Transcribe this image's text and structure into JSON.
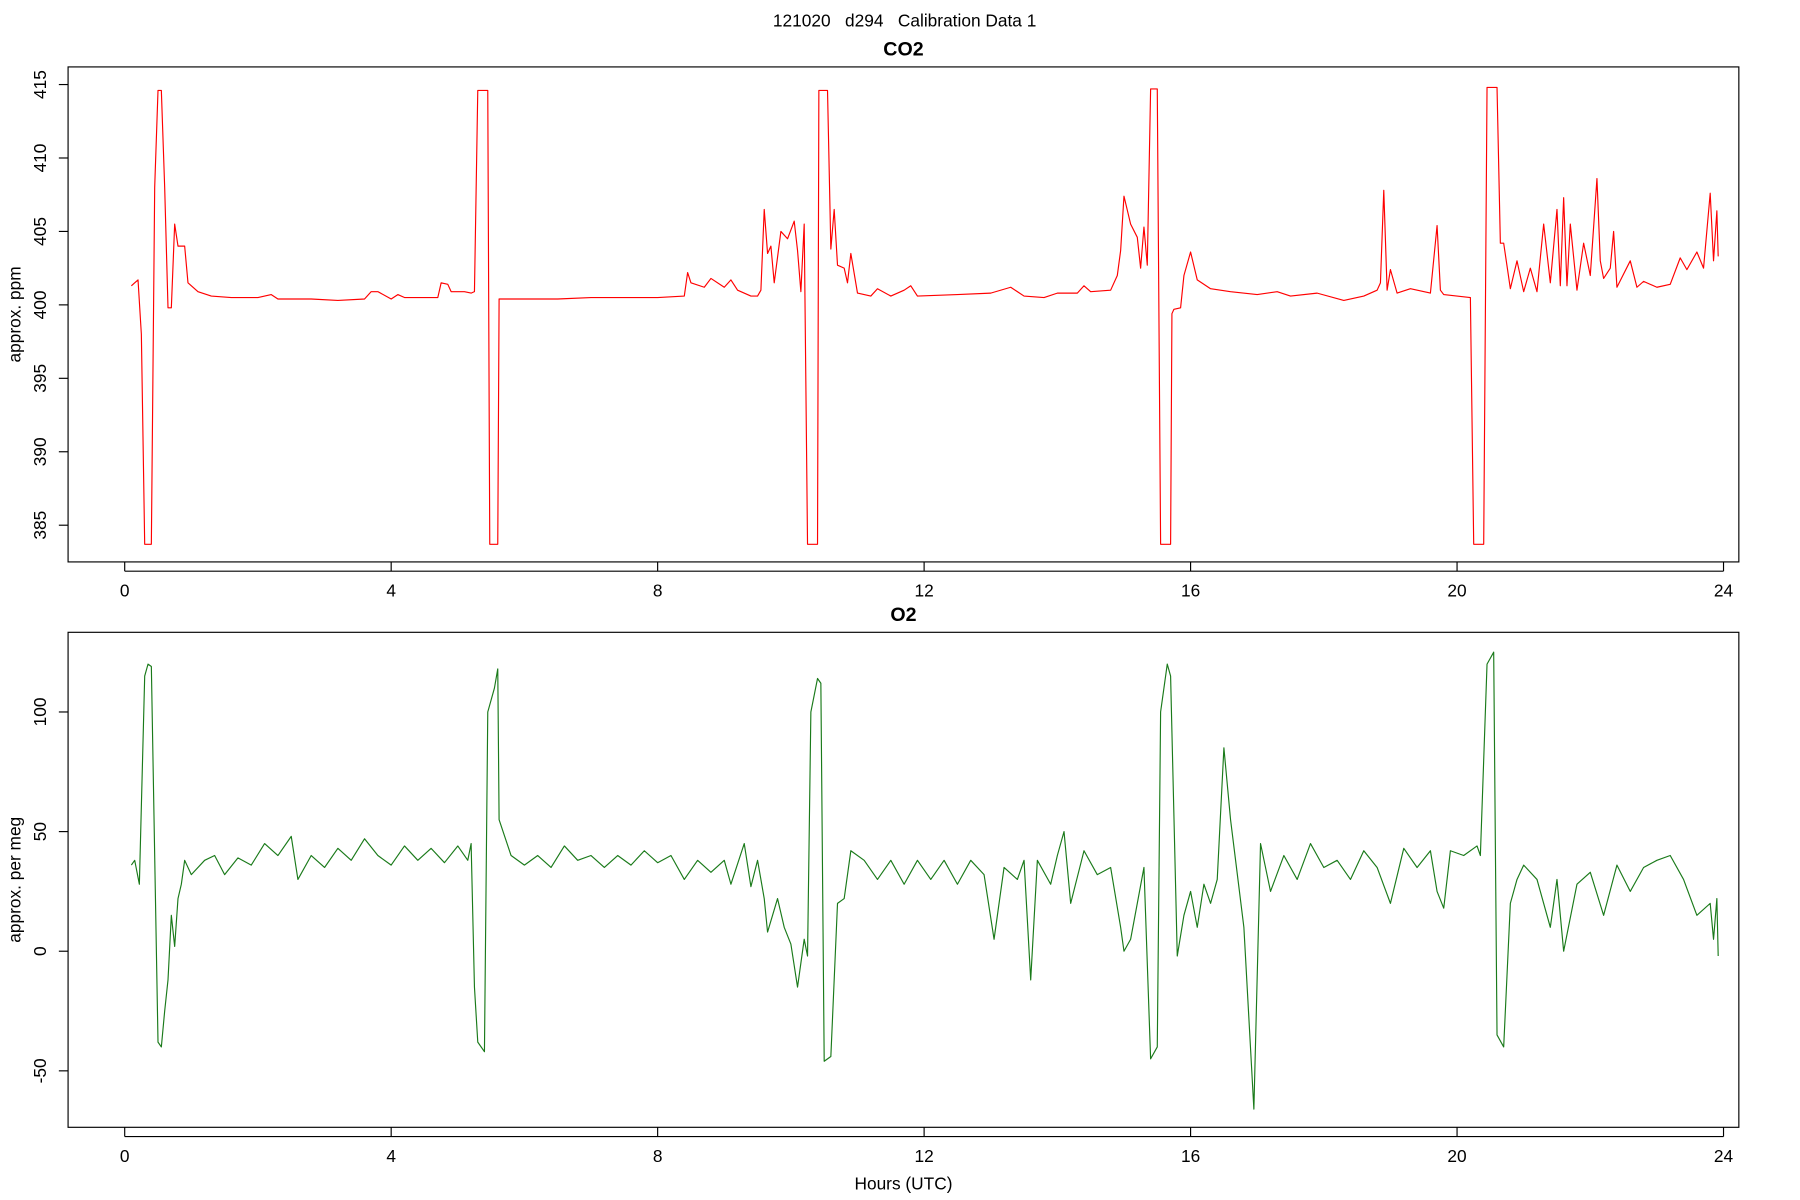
{
  "title": "121020   d294   Calibration Data 1",
  "chart_data": [
    {
      "type": "line",
      "title": "CO2",
      "ylabel": "approx. ppm",
      "color": "#ff0000",
      "xlim": [
        -0.85,
        24.23
      ],
      "xticks": [
        0,
        4,
        8,
        12,
        16,
        20,
        24
      ],
      "ylim": [
        382.5,
        416.2
      ],
      "yticks": [
        385,
        390,
        395,
        400,
        405,
        410,
        415
      ],
      "x": [
        0.1,
        0.15,
        0.2,
        0.25,
        0.3,
        0.4,
        0.45,
        0.5,
        0.55,
        0.6,
        0.65,
        0.7,
        0.75,
        0.8,
        0.9,
        0.95,
        1.1,
        1.3,
        1.6,
        2.0,
        2.2,
        2.3,
        2.8,
        3.2,
        3.6,
        3.7,
        3.8,
        4.0,
        4.1,
        4.2,
        4.7,
        4.75,
        4.85,
        4.9,
        5.1,
        5.2,
        5.25,
        5.3,
        5.45,
        5.48,
        5.6,
        5.62,
        6.0,
        6.5,
        7,
        7.5,
        8,
        8.4,
        8.45,
        8.5,
        8.7,
        8.8,
        9.0,
        9.1,
        9.2,
        9.4,
        9.5,
        9.55,
        9.6,
        9.65,
        9.7,
        9.75,
        9.85,
        9.95,
        10.05,
        10.1,
        10.15,
        10.2,
        10.25,
        10.4,
        10.42,
        10.55,
        10.6,
        10.65,
        10.7,
        10.8,
        10.85,
        10.9,
        11.0,
        11.2,
        11.3,
        11.5,
        11.7,
        11.8,
        11.9,
        12.5,
        13,
        13.3,
        13.5,
        13.8,
        14.0,
        14.3,
        14.4,
        14.5,
        14.8,
        14.9,
        14.95,
        15.0,
        15.1,
        15.2,
        15.25,
        15.3,
        15.35,
        15.4,
        15.5,
        15.55,
        15.7,
        15.72,
        15.75,
        15.85,
        15.9,
        16.0,
        16.1,
        16.3,
        16.6,
        17,
        17.3,
        17.5,
        17.9,
        18.3,
        18.6,
        18.8,
        18.85,
        18.9,
        18.95,
        19.0,
        19.1,
        19.3,
        19.6,
        19.7,
        19.75,
        19.8,
        20.2,
        20.25,
        20.4,
        20.45,
        20.6,
        20.65,
        20.7,
        20.8,
        20.9,
        21.0,
        21.1,
        21.2,
        21.3,
        21.4,
        21.5,
        21.55,
        21.6,
        21.65,
        21.7,
        21.8,
        21.9,
        22.0,
        22.1,
        22.15,
        22.2,
        22.3,
        22.35,
        22.4,
        22.6,
        22.7,
        22.8,
        23.0,
        23.2,
        23.35,
        23.45,
        23.6,
        23.7,
        23.8,
        23.85,
        23.9,
        23.92
      ],
      "values": [
        401.3,
        401.5,
        401.7,
        398,
        383.7,
        383.7,
        408,
        414.6,
        414.6,
        408,
        399.8,
        399.8,
        405.5,
        404,
        404,
        401.5,
        400.9,
        400.6,
        400.5,
        400.5,
        400.7,
        400.4,
        400.4,
        400.3,
        400.4,
        400.9,
        400.9,
        400.4,
        400.7,
        400.5,
        400.5,
        401.5,
        401.4,
        400.9,
        400.9,
        400.8,
        400.9,
        414.6,
        414.6,
        383.7,
        383.7,
        400.4,
        400.4,
        400.4,
        400.5,
        400.5,
        400.5,
        400.6,
        402.2,
        401.5,
        401.2,
        401.8,
        401.2,
        401.7,
        401,
        400.6,
        400.6,
        401,
        406.5,
        403.5,
        404,
        401.5,
        405,
        404.5,
        405.7,
        403.7,
        400.9,
        405.5,
        383.7,
        383.7,
        414.6,
        414.6,
        403.8,
        406.5,
        402.7,
        402.5,
        401.5,
        403.5,
        400.8,
        400.6,
        401.1,
        400.6,
        401,
        401.3,
        400.6,
        400.7,
        400.8,
        401.2,
        400.6,
        400.5,
        400.8,
        400.8,
        401.3,
        400.9,
        401,
        402,
        403.7,
        407.4,
        405.5,
        404.6,
        402.5,
        405.3,
        402.7,
        414.7,
        414.7,
        383.7,
        383.7,
        399.4,
        399.7,
        399.8,
        402,
        403.6,
        401.7,
        401.1,
        400.9,
        400.7,
        400.9,
        400.6,
        400.8,
        400.3,
        400.6,
        401,
        401.5,
        407.8,
        401,
        402.4,
        400.8,
        401.1,
        400.8,
        405.4,
        401,
        400.7,
        400.5,
        383.7,
        383.7,
        414.8,
        414.8,
        404.2,
        404.2,
        401.1,
        403,
        400.9,
        402.5,
        400.9,
        405.5,
        401.5,
        406.5,
        401.3,
        407.3,
        401.3,
        405.5,
        401,
        404.2,
        402,
        408.6,
        403,
        401.8,
        402.5,
        405,
        401.2,
        403,
        401.2,
        401.6,
        401.2,
        401.4,
        403.2,
        402.4,
        403.6,
        402.5,
        407.6,
        403,
        406.4,
        403.3
      ]
    },
    {
      "type": "line",
      "title": "O2",
      "ylabel": "approx. per meg",
      "xlabel": "Hours (UTC)",
      "color": "#1a7a1a",
      "xlim": [
        -0.85,
        24.23
      ],
      "xticks": [
        0,
        4,
        8,
        12,
        16,
        20,
        24
      ],
      "ylim": [
        -73.6,
        133.3
      ],
      "yticks": [
        -50,
        0,
        50,
        100
      ],
      "x": [
        0.1,
        0.15,
        0.22,
        0.3,
        0.35,
        0.4,
        0.45,
        0.5,
        0.55,
        0.6,
        0.65,
        0.7,
        0.75,
        0.8,
        0.85,
        0.9,
        1.0,
        1.2,
        1.35,
        1.5,
        1.7,
        1.9,
        2.1,
        2.3,
        2.5,
        2.6,
        2.8,
        3.0,
        3.2,
        3.4,
        3.6,
        3.8,
        4.0,
        4.2,
        4.4,
        4.6,
        4.8,
        5.0,
        5.15,
        5.2,
        5.25,
        5.3,
        5.4,
        5.45,
        5.55,
        5.6,
        5.62,
        5.8,
        6.0,
        6.2,
        6.4,
        6.6,
        6.8,
        7.0,
        7.2,
        7.4,
        7.6,
        7.8,
        8.0,
        8.2,
        8.4,
        8.6,
        8.8,
        9.0,
        9.1,
        9.3,
        9.4,
        9.5,
        9.6,
        9.65,
        9.8,
        9.9,
        10.0,
        10.1,
        10.2,
        10.25,
        10.3,
        10.4,
        10.45,
        10.5,
        10.6,
        10.7,
        10.8,
        10.9,
        11.1,
        11.3,
        11.5,
        11.7,
        11.9,
        12.1,
        12.3,
        12.5,
        12.7,
        12.9,
        13.05,
        13.2,
        13.4,
        13.5,
        13.6,
        13.7,
        13.9,
        14.0,
        14.1,
        14.2,
        14.4,
        14.6,
        14.8,
        14.95,
        15.0,
        15.1,
        15.2,
        15.3,
        15.4,
        15.5,
        15.55,
        15.65,
        15.7,
        15.8,
        15.9,
        16.0,
        16.1,
        16.2,
        16.3,
        16.4,
        16.5,
        16.6,
        16.8,
        16.95,
        17.05,
        17.2,
        17.4,
        17.6,
        17.8,
        18.0,
        18.2,
        18.4,
        18.6,
        18.8,
        19.0,
        19.2,
        19.4,
        19.6,
        19.7,
        19.8,
        19.9,
        20.1,
        20.3,
        20.35,
        20.45,
        20.55,
        20.6,
        20.7,
        20.8,
        20.9,
        21.0,
        21.2,
        21.4,
        21.5,
        21.6,
        21.8,
        22.0,
        22.2,
        22.4,
        22.6,
        22.8,
        23.0,
        23.2,
        23.4,
        23.6,
        23.8,
        23.85,
        23.9,
        23.92
      ],
      "values": [
        36,
        38,
        28,
        115,
        120,
        119,
        40,
        -38,
        -40,
        -25,
        -12,
        15,
        2,
        22,
        28,
        38,
        32,
        38,
        40,
        32,
        39,
        36,
        45,
        40,
        48,
        30,
        40,
        35,
        43,
        38,
        47,
        40,
        36,
        44,
        38,
        43,
        37,
        44,
        38,
        45,
        -15,
        -38,
        -42,
        100,
        110,
        118,
        55,
        40,
        36,
        40,
        35,
        44,
        38,
        40,
        35,
        40,
        36,
        42,
        37,
        40,
        30,
        38,
        33,
        38,
        28,
        45,
        27,
        38,
        22,
        8,
        22,
        10,
        3,
        -15,
        5,
        -2,
        100,
        114,
        112,
        -46,
        -44,
        20,
        22,
        42,
        38,
        30,
        38,
        28,
        38,
        30,
        38,
        28,
        38,
        32,
        5,
        35,
        30,
        38,
        -12,
        38,
        28,
        40,
        50,
        20,
        42,
        32,
        35,
        10,
        0,
        5,
        20,
        35,
        -45,
        -40,
        100,
        120,
        115,
        -2,
        15,
        25,
        10,
        28,
        20,
        30,
        85,
        55,
        10,
        -66,
        45,
        25,
        40,
        30,
        45,
        35,
        38,
        30,
        42,
        35,
        20,
        43,
        35,
        42,
        25,
        18,
        42,
        40,
        44,
        40,
        120,
        125,
        -35,
        -40,
        20,
        30,
        36,
        30,
        10,
        30,
        0,
        28,
        33,
        15,
        36,
        25,
        35,
        38,
        40,
        30,
        15,
        20,
        5,
        22,
        -2
      ]
    }
  ]
}
